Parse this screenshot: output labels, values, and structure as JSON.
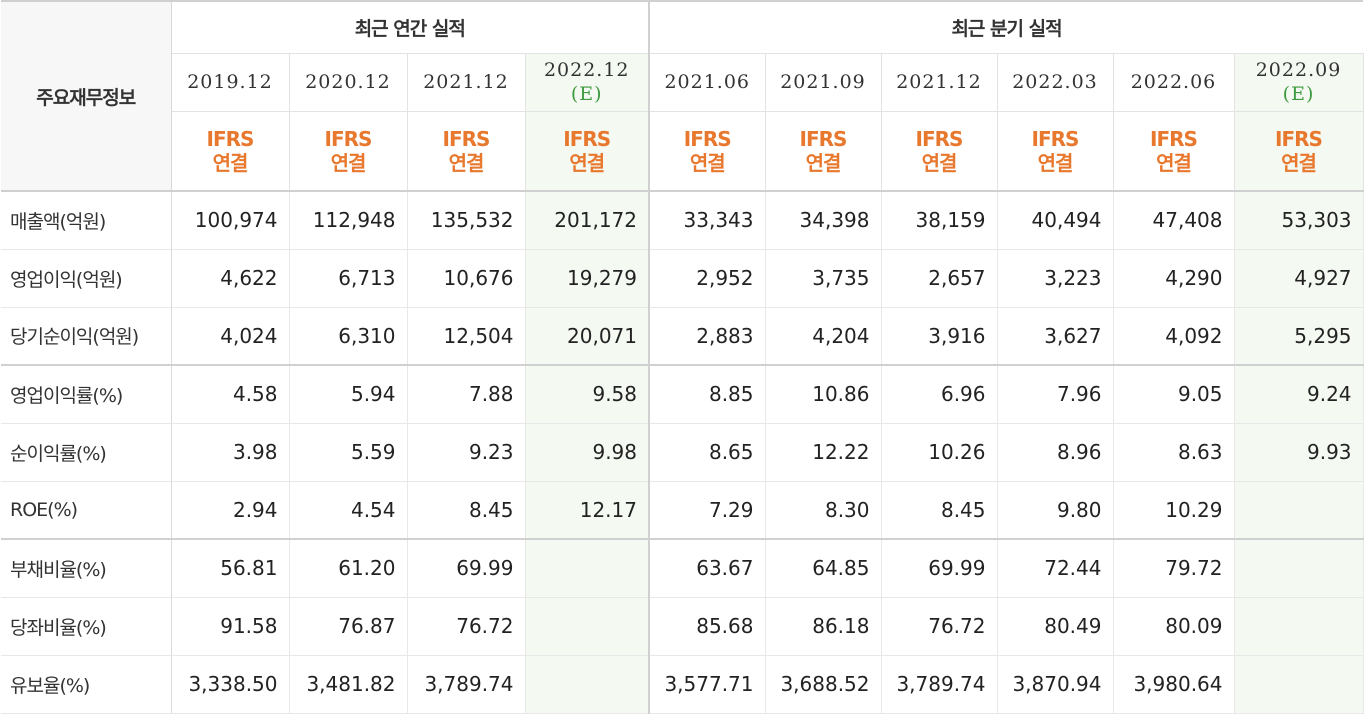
{
  "header": {
    "row_title": "주요재무정보",
    "annual_title": "최근 연간 실적",
    "quarterly_title": "최근 분기 실적",
    "ifrs_line1": "IFRS",
    "ifrs_line2": "연결"
  },
  "periods": [
    {
      "label": "2019.12",
      "est": ""
    },
    {
      "label": "2020.12",
      "est": ""
    },
    {
      "label": "2021.12",
      "est": ""
    },
    {
      "label": "2022.12",
      "est": "(E)"
    },
    {
      "label": "2021.06",
      "est": ""
    },
    {
      "label": "2021.09",
      "est": ""
    },
    {
      "label": "2021.12",
      "est": ""
    },
    {
      "label": "2022.03",
      "est": ""
    },
    {
      "label": "2022.06",
      "est": ""
    },
    {
      "label": "2022.09",
      "est": "(E)"
    }
  ],
  "rows": [
    {
      "label": "매출액(억원)",
      "values": [
        "100,974",
        "112,948",
        "135,532",
        "201,172",
        "33,343",
        "34,398",
        "38,159",
        "40,494",
        "47,408",
        "53,303"
      ]
    },
    {
      "label": "영업이익(억원)",
      "values": [
        "4,622",
        "6,713",
        "10,676",
        "19,279",
        "2,952",
        "3,735",
        "2,657",
        "3,223",
        "4,290",
        "4,927"
      ]
    },
    {
      "label": "당기순이익(억원)",
      "values": [
        "4,024",
        "6,310",
        "12,504",
        "20,071",
        "2,883",
        "4,204",
        "3,916",
        "3,627",
        "4,092",
        "5,295"
      ]
    },
    {
      "label": "영업이익률(%)",
      "values": [
        "4.58",
        "5.94",
        "7.88",
        "9.58",
        "8.85",
        "10.86",
        "6.96",
        "7.96",
        "9.05",
        "9.24"
      ]
    },
    {
      "label": "순이익률(%)",
      "values": [
        "3.98",
        "5.59",
        "9.23",
        "9.98",
        "8.65",
        "12.22",
        "10.26",
        "8.96",
        "8.63",
        "9.93"
      ]
    },
    {
      "label": "ROE(%)",
      "values": [
        "2.94",
        "4.54",
        "8.45",
        "12.17",
        "7.29",
        "8.30",
        "8.45",
        "9.80",
        "10.29",
        ""
      ]
    },
    {
      "label": "부채비율(%)",
      "values": [
        "56.81",
        "61.20",
        "69.99",
        "",
        "63.67",
        "64.85",
        "69.99",
        "72.44",
        "79.72",
        ""
      ]
    },
    {
      "label": "당좌비율(%)",
      "values": [
        "91.58",
        "76.87",
        "76.72",
        "",
        "85.68",
        "86.18",
        "76.72",
        "80.49",
        "80.09",
        ""
      ]
    },
    {
      "label": "유보율(%)",
      "values": [
        "3,338.50",
        "3,481.82",
        "3,789.74",
        "",
        "3,577.71",
        "3,688.52",
        "3,789.74",
        "3,870.94",
        "3,980.64",
        ""
      ]
    }
  ],
  "colors": {
    "ifrs_accent": "#e8782e",
    "estimate_text": "#3d9a3d",
    "estimate_column_bg": "#f4f9f2"
  }
}
